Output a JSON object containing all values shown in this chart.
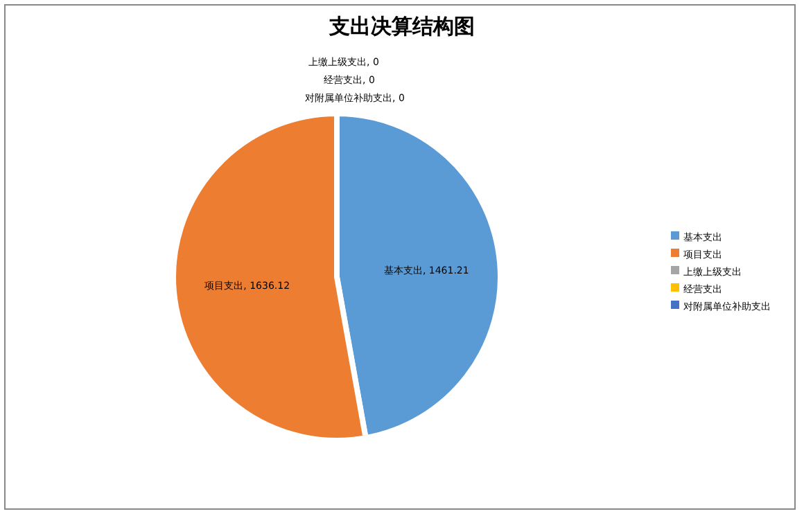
{
  "chart_data": {
    "type": "pie",
    "title": "支出决算结构图",
    "categories": [
      "基本支出",
      "项目支出",
      "上缴上级支出",
      "经营支出",
      "对附属单位补助支出"
    ],
    "values": [
      1461.21,
      1636.12,
      0,
      0,
      0
    ],
    "colors": [
      "#5b9bd5",
      "#ed7d31",
      "#a5a5a5",
      "#ffc000",
      "#4472c4"
    ],
    "value_labels": [
      ", 1461.21",
      ", 1636.12",
      ", 0",
      ", 0",
      ", 0"
    ],
    "legend": "right"
  }
}
